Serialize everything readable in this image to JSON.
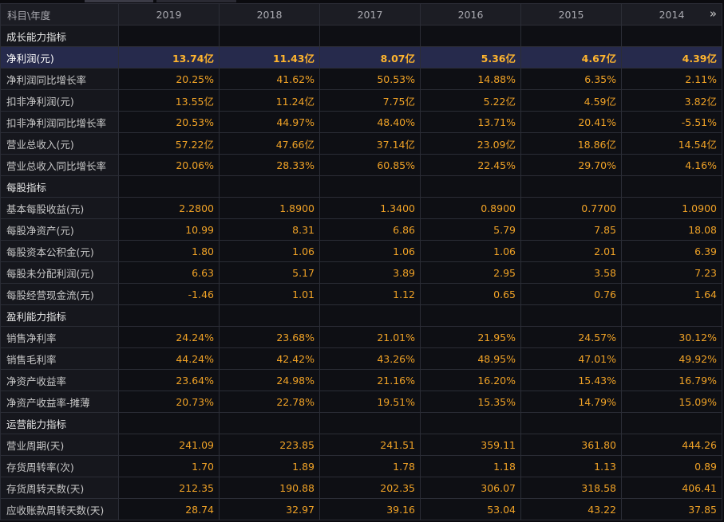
{
  "header": {
    "corner": "科目\\年度",
    "years": [
      "2019",
      "2018",
      "2017",
      "2016",
      "2015",
      "2014"
    ],
    "more_icon": "»"
  },
  "sections": [
    {
      "title": "成长能力指标",
      "rows": [
        {
          "label": "净利润(元)",
          "highlight": true,
          "values": [
            "13.74亿",
            "11.43亿",
            "8.07亿",
            "5.36亿",
            "4.67亿",
            "4.39亿"
          ]
        },
        {
          "label": "净利润同比增长率",
          "values": [
            "20.25%",
            "41.62%",
            "50.53%",
            "14.88%",
            "6.35%",
            "2.11%"
          ]
        },
        {
          "label": "扣非净利润(元)",
          "values": [
            "13.55亿",
            "11.24亿",
            "7.75亿",
            "5.22亿",
            "4.59亿",
            "3.82亿"
          ]
        },
        {
          "label": "扣非净利润同比增长率",
          "values": [
            "20.53%",
            "44.97%",
            "48.40%",
            "13.71%",
            "20.41%",
            "-5.51%"
          ]
        },
        {
          "label": "营业总收入(元)",
          "values": [
            "57.22亿",
            "47.66亿",
            "37.14亿",
            "23.09亿",
            "18.86亿",
            "14.54亿"
          ]
        },
        {
          "label": "营业总收入同比增长率",
          "values": [
            "20.06%",
            "28.33%",
            "60.85%",
            "22.45%",
            "29.70%",
            "4.16%"
          ]
        }
      ]
    },
    {
      "title": "每股指标",
      "rows": [
        {
          "label": "基本每股收益(元)",
          "values": [
            "2.2800",
            "1.8900",
            "1.3400",
            "0.8900",
            "0.7700",
            "1.0900"
          ]
        },
        {
          "label": "每股净资产(元)",
          "values": [
            "10.99",
            "8.31",
            "6.86",
            "5.79",
            "7.85",
            "18.08"
          ]
        },
        {
          "label": "每股资本公积金(元)",
          "values": [
            "1.80",
            "1.06",
            "1.06",
            "1.06",
            "2.01",
            "6.39"
          ]
        },
        {
          "label": "每股未分配利润(元)",
          "values": [
            "6.63",
            "5.17",
            "3.89",
            "2.95",
            "3.58",
            "7.23"
          ]
        },
        {
          "label": "每股经营现金流(元)",
          "values": [
            "-1.46",
            "1.01",
            "1.12",
            "0.65",
            "0.76",
            "1.64"
          ]
        }
      ]
    },
    {
      "title": "盈利能力指标",
      "rows": [
        {
          "label": "销售净利率",
          "values": [
            "24.24%",
            "23.68%",
            "21.01%",
            "21.95%",
            "24.57%",
            "30.12%"
          ]
        },
        {
          "label": "销售毛利率",
          "values": [
            "44.24%",
            "42.42%",
            "43.26%",
            "48.95%",
            "47.01%",
            "49.92%"
          ]
        },
        {
          "label": "净资产收益率",
          "values": [
            "23.64%",
            "24.98%",
            "21.16%",
            "16.20%",
            "15.43%",
            "16.79%"
          ]
        },
        {
          "label": "净资产收益率-摊薄",
          "values": [
            "20.73%",
            "22.78%",
            "19.51%",
            "15.35%",
            "14.79%",
            "15.09%"
          ]
        }
      ]
    },
    {
      "title": "运营能力指标",
      "rows": [
        {
          "label": "营业周期(天)",
          "values": [
            "241.09",
            "223.85",
            "241.51",
            "359.11",
            "361.80",
            "444.26"
          ]
        },
        {
          "label": "存货周转率(次)",
          "values": [
            "1.70",
            "1.89",
            "1.78",
            "1.18",
            "1.13",
            "0.89"
          ]
        },
        {
          "label": "存货周转天数(天)",
          "values": [
            "212.35",
            "190.88",
            "202.35",
            "306.07",
            "318.58",
            "406.41"
          ]
        },
        {
          "label": "应收账款周转天数(天)",
          "values": [
            "28.74",
            "32.97",
            "39.16",
            "53.04",
            "43.22",
            "37.85"
          ]
        }
      ]
    }
  ]
}
